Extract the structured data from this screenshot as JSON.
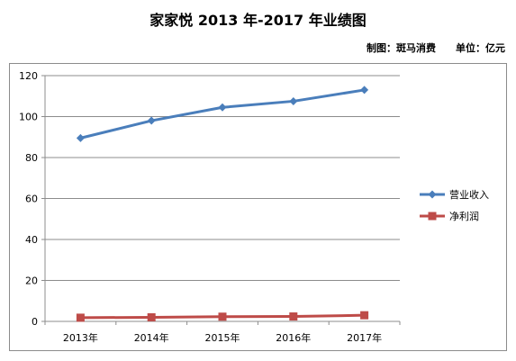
{
  "header": {
    "title": "家家悦 2013 年-2017 年业绩图",
    "credit_maker": "制图：斑马消费",
    "credit_unit": "单位：亿元"
  },
  "chart_data": {
    "type": "line",
    "title": "家家悦 2013 年-2017 年业绩图",
    "categories": [
      "2013年",
      "2014年",
      "2015年",
      "2016年",
      "2017年"
    ],
    "series": [
      {
        "name": "营业收入",
        "values": [
          89.5,
          98.0,
          104.5,
          107.5,
          113.0
        ],
        "color": "#4a7ebb",
        "marker": "diamond"
      },
      {
        "name": "净利润",
        "values": [
          1.8,
          2.0,
          2.3,
          2.4,
          3.0
        ],
        "color": "#be4b48",
        "marker": "square"
      }
    ],
    "ylim": [
      0,
      120
    ],
    "yticks": [
      0,
      20,
      40,
      60,
      80,
      100,
      120
    ],
    "grid": true,
    "legend_position": "right"
  }
}
